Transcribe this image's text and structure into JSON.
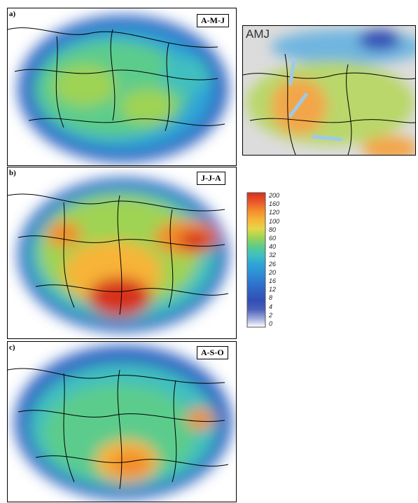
{
  "panels": {
    "a": {
      "label": "a)",
      "season": "A-M-J"
    },
    "b": {
      "label": "b)",
      "season": "J-J-A"
    },
    "c": {
      "label": "c)",
      "season": "A-S-O"
    }
  },
  "inset": {
    "title": "AMJ"
  },
  "legend": {
    "ticks": [
      "200",
      "160",
      "120",
      "100",
      "80",
      "60",
      "40",
      "32",
      "26",
      "20",
      "16",
      "12",
      "8",
      "4",
      "2",
      "0"
    ],
    "colors": [
      "#d7301f",
      "#e8562b",
      "#f38b2c",
      "#f7b437",
      "#e6d64a",
      "#9fd352",
      "#5ccc8c",
      "#3fbfc0",
      "#2ea4d6",
      "#2e8fd8",
      "#2f77cf",
      "#2f62c2",
      "#3050b5",
      "#4b5fb8",
      "#9aa6da",
      "#ffffff"
    ]
  }
}
